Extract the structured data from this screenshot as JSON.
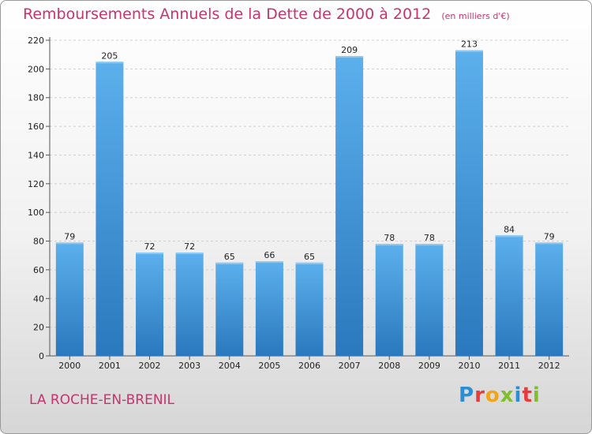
{
  "header": {
    "title": "Remboursements Annuels de la Dette de 2000 à 2012",
    "unit": "(en milliers d'€)"
  },
  "footer": {
    "commune": "LA ROCHE-EN-BRENIL",
    "brand": "Proxiti",
    "brand_colors": [
      "#2a8fd6",
      "#e83c3c",
      "#f2a51a",
      "#7fbf2a",
      "#2a8fd6",
      "#e83c3c",
      "#7fbf2a"
    ]
  },
  "chart_data": {
    "type": "bar",
    "title": "Remboursements Annuels de la Dette de 2000 à 2012",
    "xlabel": "",
    "ylabel": "",
    "categories": [
      "2000",
      "2001",
      "2002",
      "2003",
      "2004",
      "2005",
      "2006",
      "2007",
      "2008",
      "2009",
      "2010",
      "2011",
      "2012"
    ],
    "values": [
      79,
      205,
      72,
      72,
      65,
      66,
      65,
      209,
      78,
      78,
      213,
      84,
      79
    ],
    "ylim": [
      0,
      220
    ],
    "yticks": [
      0,
      20,
      40,
      60,
      80,
      100,
      120,
      140,
      160,
      180,
      200,
      220
    ],
    "grid": true,
    "bar_color": "#4a9fe0",
    "bar_color_dark": "#2a7cc0"
  }
}
